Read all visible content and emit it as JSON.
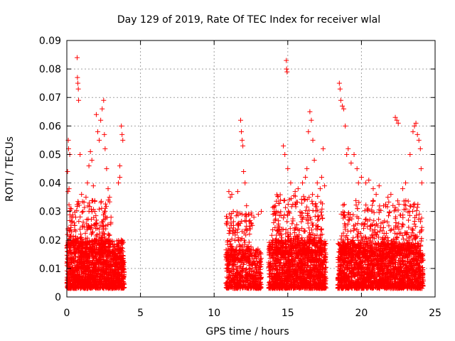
{
  "chart_data": {
    "type": "scatter",
    "title": "Day 129 of 2019, Rate Of TEC Index for receiver wlal",
    "xlabel": "GPS time / hours",
    "ylabel": "ROTI / TECUs",
    "xlim": [
      0,
      25
    ],
    "ylim": [
      0,
      0.09
    ],
    "x_ticks": [
      "0",
      "5",
      "10",
      "15",
      "20",
      "25"
    ],
    "y_ticks": [
      "0",
      "0.01",
      "0.02",
      "0.03",
      "0.04",
      "0.05",
      "0.06",
      "0.07",
      "0.08",
      "0.09"
    ],
    "grid": true,
    "marker": "+",
    "marker_color": "#ff0000",
    "series": [
      {
        "name": "ROTI",
        "points": [
          [
            0.05,
            0.044
          ],
          [
            0.08,
            0.037
          ],
          [
            0.1,
            0.055
          ],
          [
            0.12,
            0.052
          ],
          [
            0.15,
            0.038
          ],
          [
            0.2,
            0.05
          ],
          [
            0.3,
            0.028
          ],
          [
            0.5,
            0.026
          ],
          [
            0.6,
            0.028
          ],
          [
            0.7,
            0.084
          ],
          [
            0.72,
            0.077
          ],
          [
            0.75,
            0.075
          ],
          [
            0.78,
            0.073
          ],
          [
            0.8,
            0.069
          ],
          [
            0.9,
            0.05
          ],
          [
            1.0,
            0.036
          ],
          [
            1.1,
            0.03
          ],
          [
            1.3,
            0.035
          ],
          [
            1.4,
            0.04
          ],
          [
            1.5,
            0.046
          ],
          [
            1.6,
            0.051
          ],
          [
            1.7,
            0.048
          ],
          [
            1.8,
            0.039
          ],
          [
            1.9,
            0.03
          ],
          [
            2.0,
            0.064
          ],
          [
            2.1,
            0.058
          ],
          [
            2.2,
            0.055
          ],
          [
            2.3,
            0.062
          ],
          [
            2.4,
            0.066
          ],
          [
            2.5,
            0.069
          ],
          [
            2.55,
            0.057
          ],
          [
            2.6,
            0.052
          ],
          [
            2.7,
            0.045
          ],
          [
            2.8,
            0.038
          ],
          [
            2.9,
            0.035
          ],
          [
            3.0,
            0.028
          ],
          [
            3.5,
            0.04
          ],
          [
            3.6,
            0.046
          ],
          [
            3.7,
            0.06
          ],
          [
            3.75,
            0.057
          ],
          [
            3.8,
            0.055
          ],
          [
            3.6,
            0.042
          ],
          [
            11.0,
            0.037
          ],
          [
            11.1,
            0.035
          ],
          [
            11.2,
            0.036
          ],
          [
            11.3,
            0.03
          ],
          [
            11.6,
            0.037
          ],
          [
            11.8,
            0.062
          ],
          [
            11.85,
            0.058
          ],
          [
            11.9,
            0.055
          ],
          [
            11.95,
            0.053
          ],
          [
            12.0,
            0.044
          ],
          [
            12.1,
            0.04
          ],
          [
            12.2,
            0.032
          ],
          [
            12.5,
            0.026
          ],
          [
            12.7,
            0.028
          ],
          [
            13.0,
            0.029
          ],
          [
            13.2,
            0.03
          ],
          [
            14.0,
            0.029
          ],
          [
            14.2,
            0.03
          ],
          [
            14.5,
            0.034
          ],
          [
            14.7,
            0.053
          ],
          [
            14.8,
            0.05
          ],
          [
            14.9,
            0.083
          ],
          [
            14.92,
            0.08
          ],
          [
            14.95,
            0.079
          ],
          [
            15.0,
            0.045
          ],
          [
            15.2,
            0.04
          ],
          [
            15.5,
            0.037
          ],
          [
            15.7,
            0.038
          ],
          [
            16.0,
            0.04
          ],
          [
            16.2,
            0.042
          ],
          [
            16.3,
            0.045
          ],
          [
            16.4,
            0.058
          ],
          [
            16.5,
            0.065
          ],
          [
            16.6,
            0.062
          ],
          [
            16.7,
            0.055
          ],
          [
            16.8,
            0.048
          ],
          [
            17.0,
            0.04
          ],
          [
            17.2,
            0.038
          ],
          [
            17.3,
            0.042
          ],
          [
            17.4,
            0.052
          ],
          [
            17.5,
            0.039
          ],
          [
            18.5,
            0.075
          ],
          [
            18.55,
            0.073
          ],
          [
            18.6,
            0.069
          ],
          [
            18.7,
            0.067
          ],
          [
            18.8,
            0.066
          ],
          [
            18.9,
            0.06
          ],
          [
            19.0,
            0.05
          ],
          [
            19.1,
            0.052
          ],
          [
            19.3,
            0.047
          ],
          [
            19.5,
            0.05
          ],
          [
            19.7,
            0.045
          ],
          [
            19.8,
            0.04
          ],
          [
            20.0,
            0.042
          ],
          [
            20.3,
            0.04
          ],
          [
            20.5,
            0.041
          ],
          [
            20.8,
            0.038
          ],
          [
            21.0,
            0.036
          ],
          [
            21.2,
            0.039
          ],
          [
            21.5,
            0.032
          ],
          [
            21.8,
            0.035
          ],
          [
            22.0,
            0.036
          ],
          [
            22.3,
            0.063
          ],
          [
            22.4,
            0.062
          ],
          [
            22.5,
            0.061
          ],
          [
            22.8,
            0.038
          ],
          [
            23.0,
            0.04
          ],
          [
            23.3,
            0.05
          ],
          [
            23.5,
            0.058
          ],
          [
            23.6,
            0.06
          ],
          [
            23.7,
            0.061
          ],
          [
            23.8,
            0.057
          ],
          [
            23.9,
            0.055
          ],
          [
            24.0,
            0.052
          ],
          [
            24.05,
            0.045
          ],
          [
            24.1,
            0.04
          ]
        ],
        "dense_bands": [
          {
            "x": [
              0,
              3.9
            ],
            "y_low": 0.003,
            "y_high": 0.02,
            "count": 1400
          },
          {
            "x": [
              0,
              3.0
            ],
            "y_low": 0.015,
            "y_high": 0.034,
            "count": 260
          },
          {
            "x": [
              10.8,
              13.2
            ],
            "y_low": 0.003,
            "y_high": 0.017,
            "count": 520
          },
          {
            "x": [
              10.8,
              12.6
            ],
            "y_low": 0.013,
            "y_high": 0.03,
            "count": 150
          },
          {
            "x": [
              13.7,
              17.6
            ],
            "y_low": 0.003,
            "y_high": 0.02,
            "count": 1300
          },
          {
            "x": [
              13.9,
              17.4
            ],
            "y_low": 0.015,
            "y_high": 0.036,
            "count": 320
          },
          {
            "x": [
              18.4,
              24.2
            ],
            "y_low": 0.003,
            "y_high": 0.019,
            "count": 1800
          },
          {
            "x": [
              18.6,
              24.1
            ],
            "y_low": 0.015,
            "y_high": 0.034,
            "count": 420
          }
        ]
      }
    ]
  }
}
